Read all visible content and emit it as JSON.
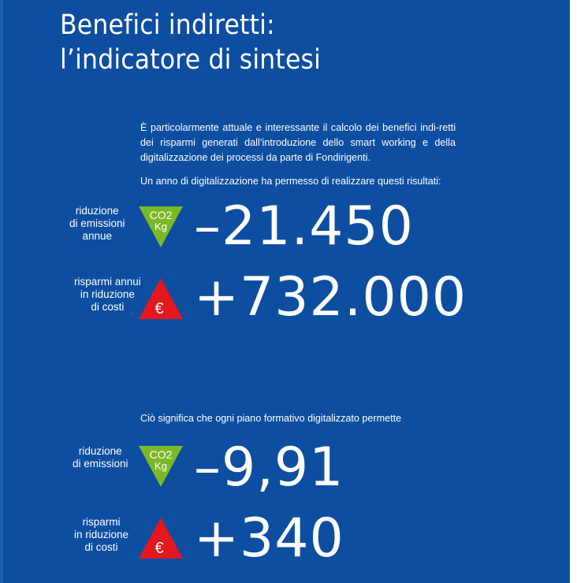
{
  "title": {
    "line1": "Benefici indiretti:",
    "line2": "l’indicatore di sintesi"
  },
  "intro": {
    "paragraph": "È particolarmente attuale e interessante il calcolo dei benefici indi-retti dei risparmi generati dall’introduzione dello smart working e della digitalizzazione dei processi da parte di Fondirigenti.",
    "lead": "Un anno di digitalizzazione ha permesso di realizzare questi risultati:"
  },
  "annual": {
    "emissions": {
      "label_lines": [
        "riduzione",
        "di emissioni",
        "annue"
      ],
      "badge_top": "CO2",
      "badge_bottom": "Kg",
      "value": "–21.450"
    },
    "savings": {
      "label_lines": [
        "risparmi annui",
        "in riduzione",
        "di costi"
      ],
      "badge": "€",
      "value": "+732.000"
    }
  },
  "per_plan": {
    "lead": "Ciò significa che ogni piano formativo digitalizzato permette",
    "emissions": {
      "label_lines": [
        "riduzione",
        "di emissioni"
      ],
      "badge_top": "CO2",
      "badge_bottom": "Kg",
      "value": "–9,91"
    },
    "savings": {
      "label_lines": [
        "risparmi",
        "in riduzione",
        "di costi"
      ],
      "badge": "€",
      "value": "+340"
    }
  },
  "colors": {
    "background": "#0d4ea1",
    "green_badge": "#7ab828",
    "red_badge": "#e3171d"
  }
}
